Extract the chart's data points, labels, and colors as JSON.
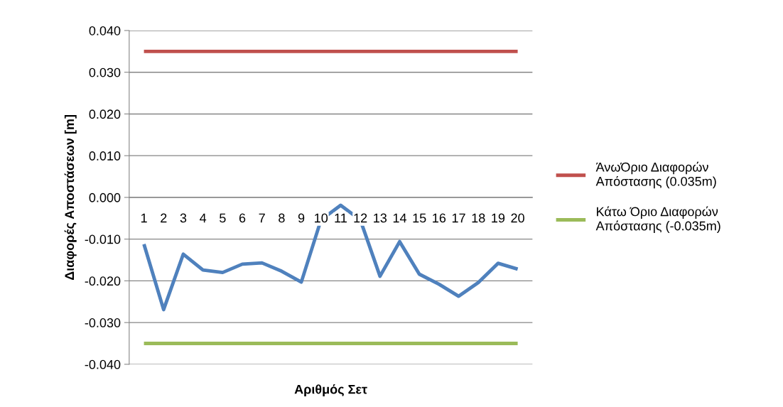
{
  "chart_data": {
    "type": "line",
    "xlabel": "Αριθμός Σετ",
    "ylabel": "Διαφορές Αποστάσεων [m]",
    "categories": [
      "1",
      "2",
      "3",
      "4",
      "5",
      "6",
      "7",
      "8",
      "9",
      "10",
      "11",
      "12",
      "13",
      "14",
      "15",
      "16",
      "17",
      "18",
      "19",
      "20"
    ],
    "series": [
      {
        "color": "#4f81bd",
        "values": [
          -0.0112,
          -0.0269,
          -0.0136,
          -0.0174,
          -0.018,
          -0.016,
          -0.0157,
          -0.0177,
          -0.0203,
          -0.0054,
          -0.0019,
          -0.0054,
          -0.0189,
          -0.0106,
          -0.0184,
          -0.0208,
          -0.0237,
          -0.0204,
          -0.0158,
          -0.0172
        ]
      },
      {
        "name": "ΆνωΌριο Διαφορών\nΑπόστασης (0.035m)",
        "color": "#c0504d",
        "values": [
          0.035,
          0.035,
          0.035,
          0.035,
          0.035,
          0.035,
          0.035,
          0.035,
          0.035,
          0.035,
          0.035,
          0.035,
          0.035,
          0.035,
          0.035,
          0.035,
          0.035,
          0.035,
          0.035,
          0.035
        ]
      },
      {
        "name": "Κάτω Όριο Διαφορών\nΑπόστασης (-0.035m)",
        "color": "#9bbb59",
        "values": [
          -0.035,
          -0.035,
          -0.035,
          -0.035,
          -0.035,
          -0.035,
          -0.035,
          -0.035,
          -0.035,
          -0.035,
          -0.035,
          -0.035,
          -0.035,
          -0.035,
          -0.035,
          -0.035,
          -0.035,
          -0.035,
          -0.035,
          -0.035
        ]
      }
    ],
    "ylim": [
      -0.04,
      0.04
    ],
    "yticks": [
      {
        "value": -0.04,
        "label": "-0.040"
      },
      {
        "value": -0.03,
        "label": "-0.030"
      },
      {
        "value": -0.02,
        "label": "-0.020"
      },
      {
        "value": -0.01,
        "label": "-0.010"
      },
      {
        "value": 0,
        "label": "0.000"
      },
      {
        "value": 0.01,
        "label": "0.010"
      },
      {
        "value": 0.02,
        "label": "0.020"
      },
      {
        "value": 0.03,
        "label": "0.030"
      },
      {
        "value": 0.04,
        "label": "0.040"
      }
    ],
    "grid": "y",
    "legend": "right",
    "marker": "none",
    "line_style": "solid"
  }
}
